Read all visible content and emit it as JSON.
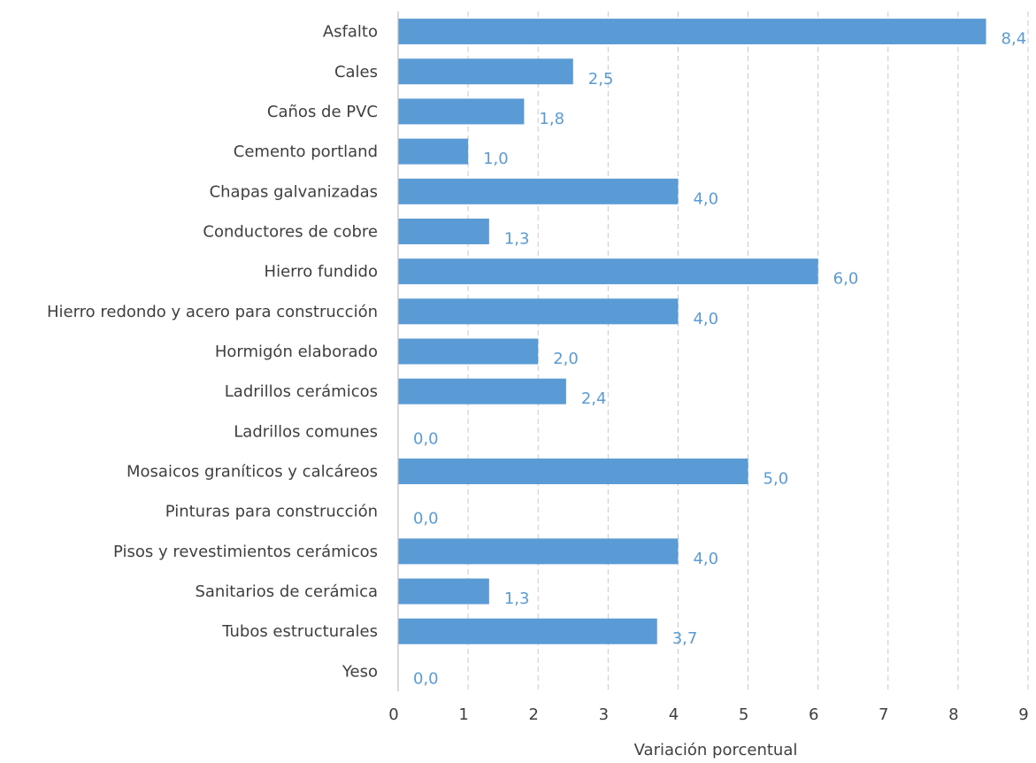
{
  "chart_data": {
    "type": "bar",
    "orientation": "horizontal",
    "categories": [
      "Asfalto",
      "Cales",
      "Caños de PVC",
      "Cemento portland",
      "Chapas galvanizadas",
      "Conductores de cobre",
      "Hierro fundido",
      "Hierro redondo y acero para construcción",
      "Hormigón elaborado",
      "Ladrillos cerámicos",
      "Ladrillos comunes",
      "Mosaicos graníticos y calcáreos",
      "Pinturas para construcción",
      "Pisos y revestimientos cerámicos",
      "Sanitarios de cerámica",
      "Tubos estructurales",
      "Yeso"
    ],
    "values": [
      8.4,
      2.5,
      1.8,
      1.0,
      4.0,
      1.3,
      6.0,
      4.0,
      2.0,
      2.4,
      0.0,
      5.0,
      0.0,
      4.0,
      1.3,
      3.7,
      0.0
    ],
    "data_labels": [
      "8,4",
      "2,5",
      "1,8",
      "1,0",
      "4,0",
      "1,3",
      "6,0",
      "4,0",
      "2,0",
      "2,4",
      "0,0",
      "5,0",
      "0,0",
      "4,0",
      "1,3",
      "3,7",
      "0,0"
    ],
    "xlabel": "Variación porcentual",
    "ylabel": "",
    "xlim": [
      0,
      9
    ],
    "xticks": [
      "0",
      "1",
      "2",
      "3",
      "4",
      "5",
      "6",
      "7",
      "8",
      "9"
    ],
    "grid": "vertical dashed",
    "bar_color": "#5b9bd5",
    "label_color": "#5b9bd5"
  }
}
